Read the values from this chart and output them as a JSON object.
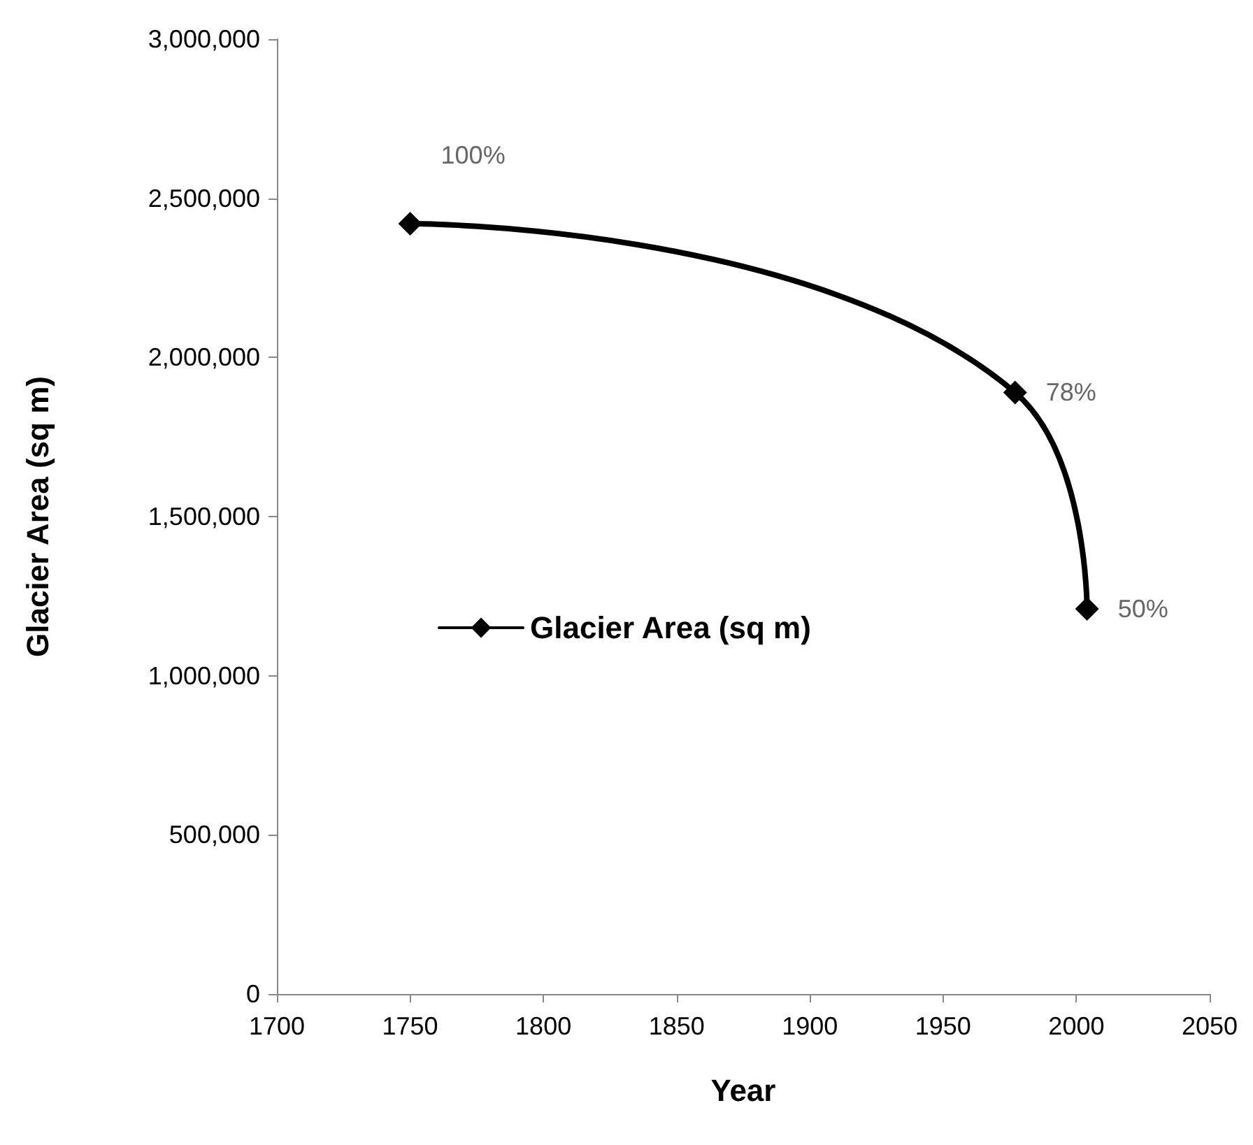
{
  "chart_data": {
    "type": "line",
    "xlabel": "Year",
    "ylabel": "Glacier Area (sq m)",
    "x": [
      1750,
      1977,
      2004
    ],
    "series": [
      {
        "name": "Glacier Area (sq m)",
        "color": "#000000",
        "values": [
          2420000,
          1890000,
          1210000
        ]
      }
    ],
    "annotations": [
      {
        "text": "100%",
        "x": 1750,
        "y": 2420000
      },
      {
        "text": "78%",
        "x": 1977,
        "y": 1890000
      },
      {
        "text": "50%",
        "x": 2004,
        "y": 1210000
      }
    ],
    "xlim": [
      1700,
      2050
    ],
    "xticks": [
      1700,
      1750,
      1800,
      1850,
      1900,
      1950,
      2000,
      2050
    ],
    "ylim": [
      0,
      3000000
    ],
    "yticks": [
      0,
      {
        "value": 500000,
        "label": "500,000"
      },
      {
        "value": 1000000,
        "label": "1,000,000"
      },
      {
        "value": 1500000,
        "label": "1,500,000"
      },
      {
        "value": 2000000,
        "label": "2,000,000"
      },
      {
        "value": 2500000,
        "label": "2,500,000"
      },
      {
        "value": 3000000,
        "label": "3,000,000"
      }
    ],
    "grid": false,
    "legend": "left",
    "marker": "diamond",
    "line_style": "solid"
  }
}
